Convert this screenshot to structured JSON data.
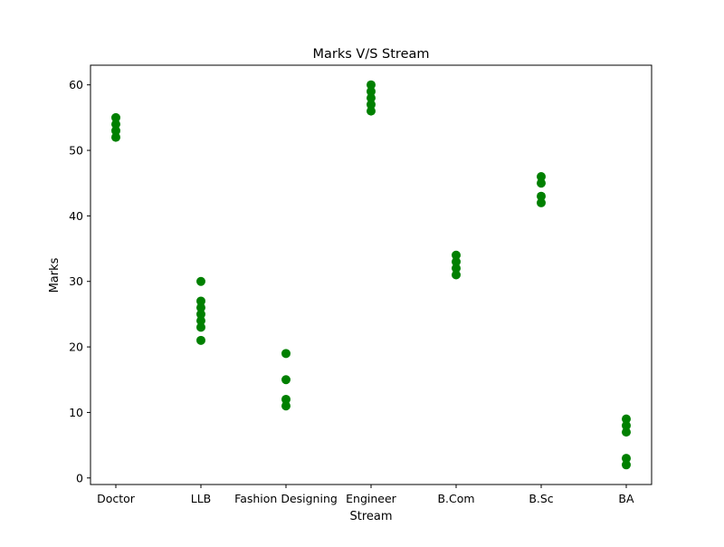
{
  "chart_data": {
    "type": "scatter",
    "title": "Marks V/S Stream",
    "xlabel": "Stream",
    "ylabel": "Marks",
    "categories": [
      "Doctor",
      "LLB",
      "Fashion Designing",
      "Engineer",
      "B.Com",
      "B.Sc",
      "BA"
    ],
    "ylim": [
      -1,
      63
    ],
    "yticks": [
      0,
      10,
      20,
      30,
      40,
      50,
      60
    ],
    "grid": false,
    "marker_color": "#008000",
    "series": [
      {
        "points": [
          {
            "x": "Doctor",
            "y": 55
          },
          {
            "x": "Doctor",
            "y": 54
          },
          {
            "x": "Doctor",
            "y": 53
          },
          {
            "x": "Doctor",
            "y": 52
          },
          {
            "x": "LLB",
            "y": 30
          },
          {
            "x": "LLB",
            "y": 27
          },
          {
            "x": "LLB",
            "y": 26
          },
          {
            "x": "LLB",
            "y": 25
          },
          {
            "x": "LLB",
            "y": 24
          },
          {
            "x": "LLB",
            "y": 23
          },
          {
            "x": "LLB",
            "y": 21
          },
          {
            "x": "Fashion Designing",
            "y": 19
          },
          {
            "x": "Fashion Designing",
            "y": 15
          },
          {
            "x": "Fashion Designing",
            "y": 12
          },
          {
            "x": "Fashion Designing",
            "y": 11
          },
          {
            "x": "Engineer",
            "y": 60
          },
          {
            "x": "Engineer",
            "y": 59
          },
          {
            "x": "Engineer",
            "y": 58
          },
          {
            "x": "Engineer",
            "y": 57
          },
          {
            "x": "Engineer",
            "y": 56
          },
          {
            "x": "B.Com",
            "y": 34
          },
          {
            "x": "B.Com",
            "y": 33
          },
          {
            "x": "B.Com",
            "y": 32
          },
          {
            "x": "B.Com",
            "y": 31
          },
          {
            "x": "B.Sc",
            "y": 46
          },
          {
            "x": "B.Sc",
            "y": 45
          },
          {
            "x": "B.Sc",
            "y": 43
          },
          {
            "x": "B.Sc",
            "y": 42
          },
          {
            "x": "BA",
            "y": 9
          },
          {
            "x": "BA",
            "y": 8
          },
          {
            "x": "BA",
            "y": 7
          },
          {
            "x": "BA",
            "y": 3
          },
          {
            "x": "BA",
            "y": 2
          }
        ]
      }
    ]
  }
}
